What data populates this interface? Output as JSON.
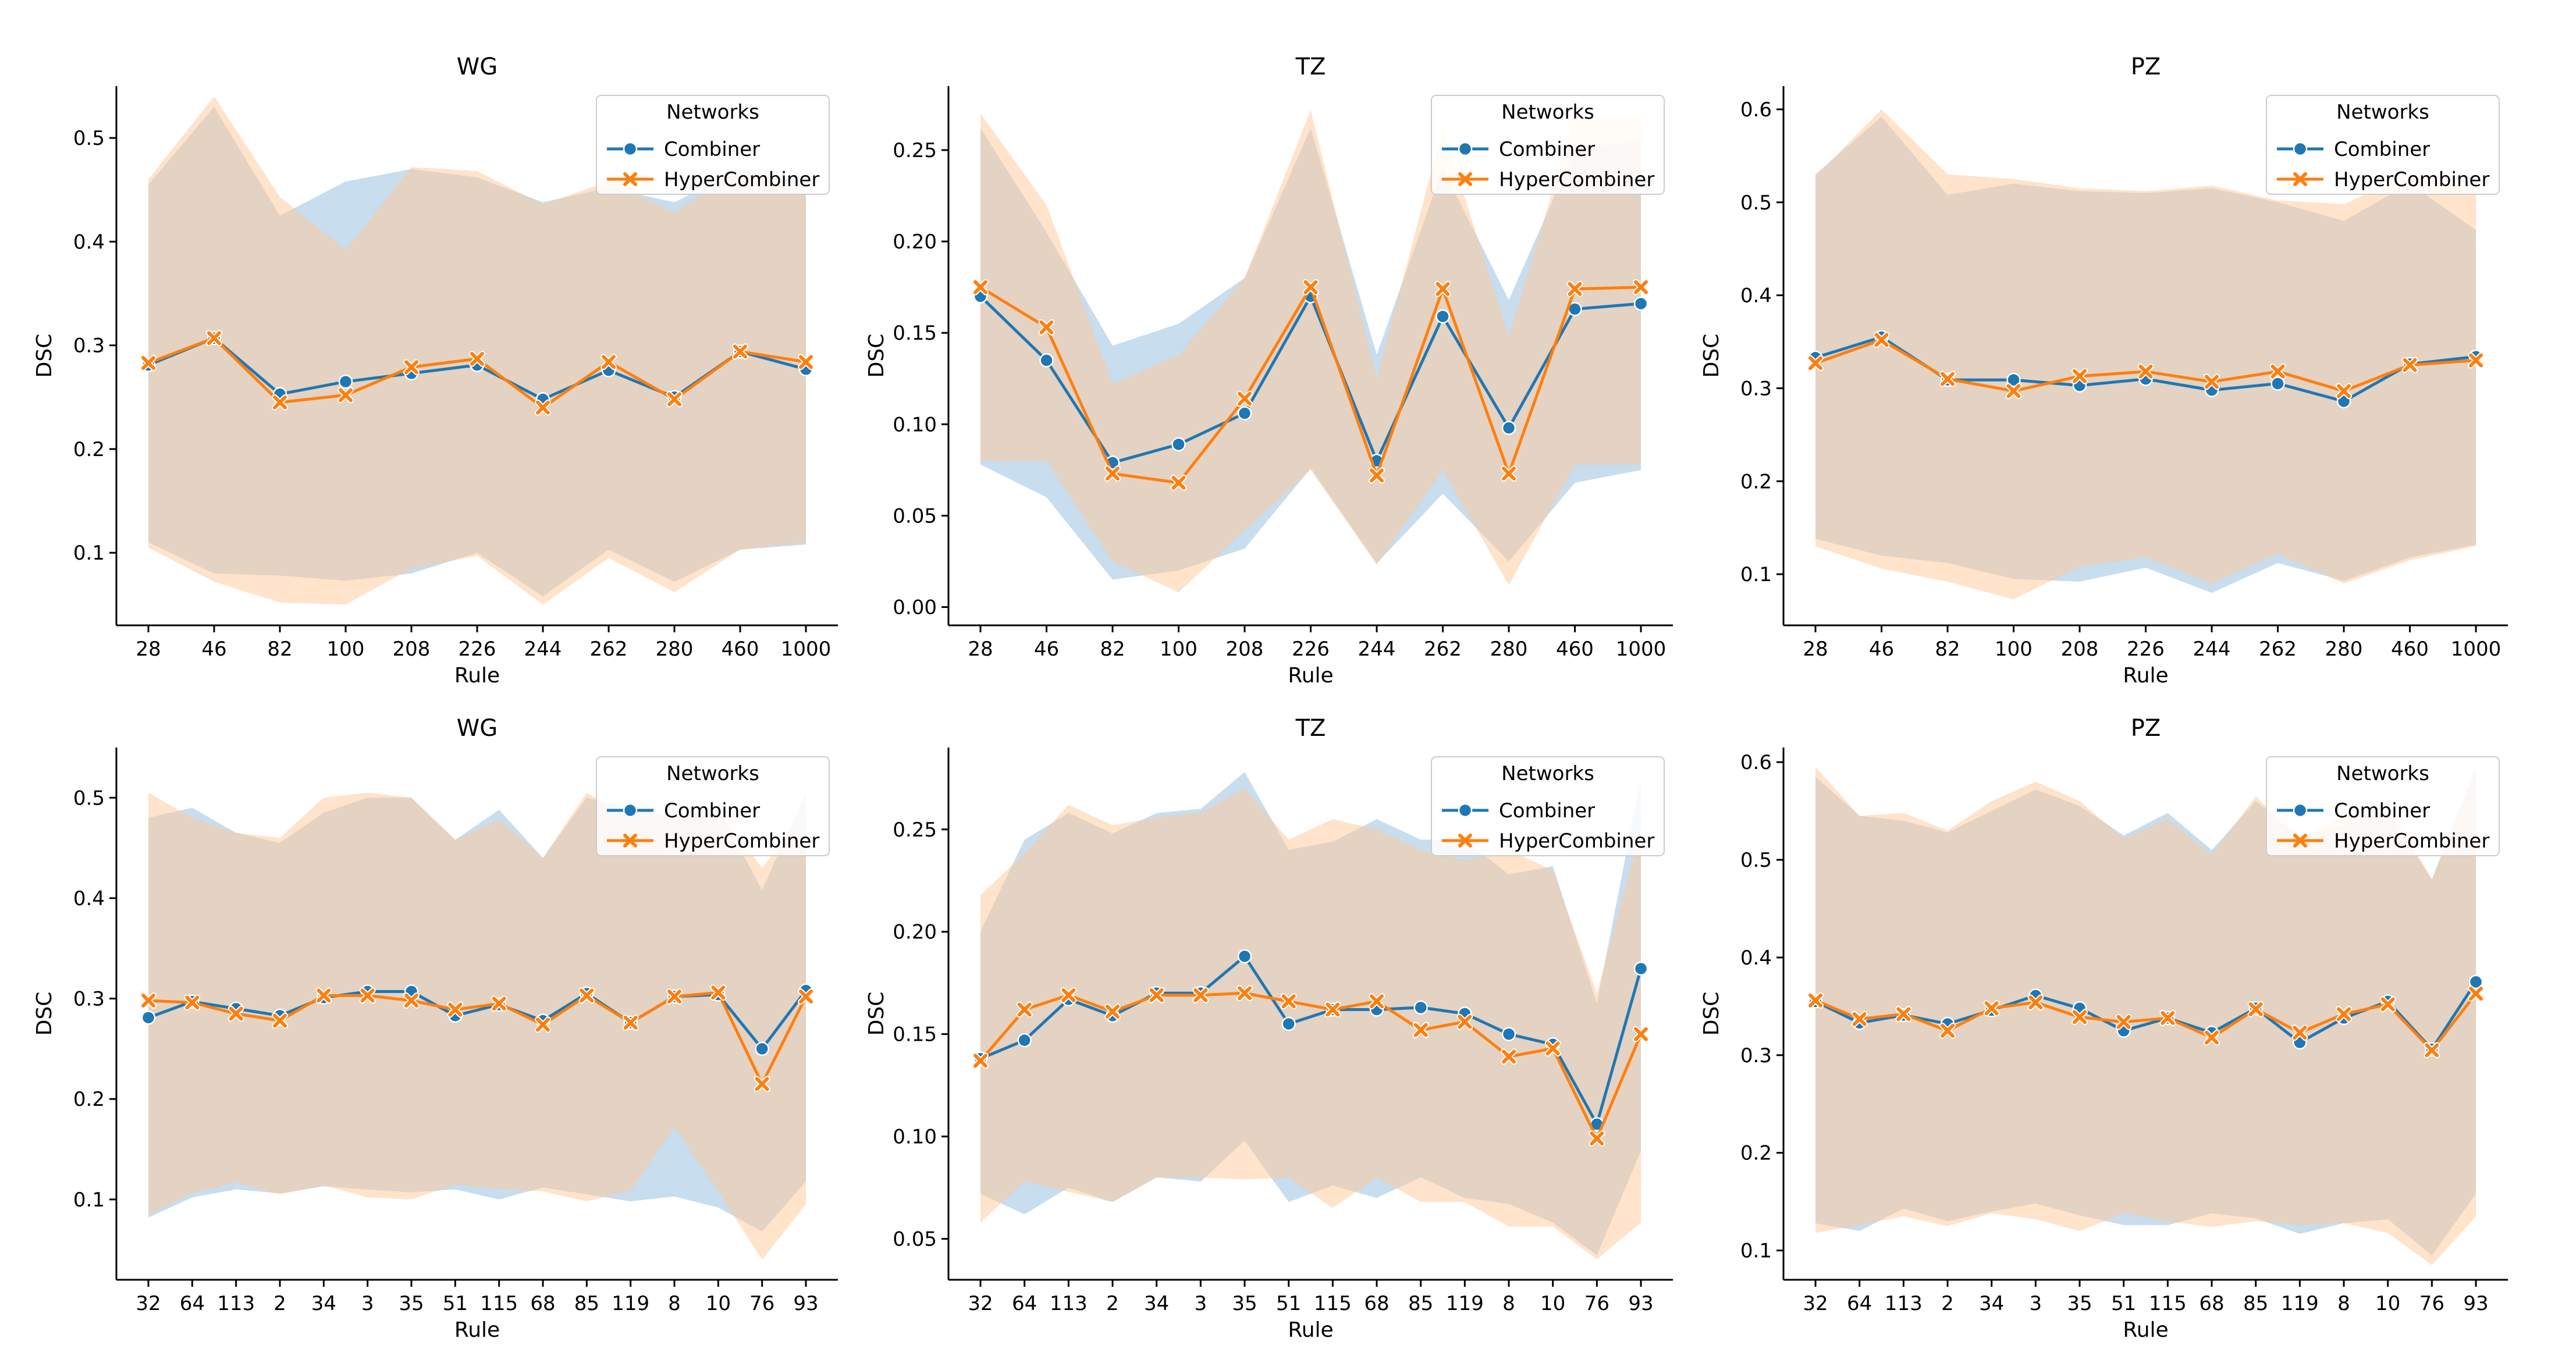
{
  "figure": {
    "legend_title": "Networks"
  },
  "colors": {
    "combiner": "#1f77b4",
    "hyper": "#ff7f0e",
    "combiner_band": "#a6c8e4",
    "hyper_band": "#ffc896",
    "axis": "#000000"
  },
  "chart_data": [
    {
      "type": "line",
      "title": "WG",
      "xlabel": "Rule",
      "ylabel": "DSC",
      "categories": [
        "28",
        "46",
        "82",
        "100",
        "208",
        "226",
        "244",
        "262",
        "280",
        "460",
        "1000"
      ],
      "ylim": [
        0.03,
        0.55
      ],
      "yticks": [
        0.1,
        0.2,
        0.3,
        0.4,
        0.5
      ],
      "ytick_labels": [
        "0.1",
        "0.2",
        "0.3",
        "0.4",
        "0.5"
      ],
      "legend": "top-right",
      "series": [
        {
          "name": "Combiner",
          "marker": "circle",
          "values": [
            0.281,
            0.307,
            0.253,
            0.265,
            0.273,
            0.281,
            0.248,
            0.276,
            0.25,
            0.294,
            0.277
          ],
          "upper": [
            0.455,
            0.53,
            0.425,
            0.458,
            0.47,
            0.462,
            0.438,
            0.452,
            0.438,
            0.47,
            0.458
          ],
          "lower": [
            0.11,
            0.08,
            0.078,
            0.073,
            0.08,
            0.1,
            0.058,
            0.103,
            0.072,
            0.103,
            0.108
          ]
        },
        {
          "name": "HyperCombiner",
          "marker": "x",
          "values": [
            0.283,
            0.307,
            0.245,
            0.252,
            0.279,
            0.287,
            0.24,
            0.284,
            0.248,
            0.294,
            0.284
          ],
          "upper": [
            0.46,
            0.54,
            0.443,
            0.392,
            0.472,
            0.468,
            0.436,
            0.458,
            0.428,
            0.47,
            0.45
          ],
          "lower": [
            0.105,
            0.072,
            0.052,
            0.05,
            0.085,
            0.097,
            0.05,
            0.095,
            0.062,
            0.103,
            0.11
          ]
        }
      ]
    },
    {
      "type": "line",
      "title": "TZ",
      "xlabel": "Rule",
      "ylabel": "DSC",
      "categories": [
        "28",
        "46",
        "82",
        "100",
        "208",
        "226",
        "244",
        "262",
        "280",
        "460",
        "1000"
      ],
      "ylim": [
        -0.01,
        0.285
      ],
      "yticks": [
        0.0,
        0.05,
        0.1,
        0.15,
        0.2,
        0.25
      ],
      "ytick_labels": [
        "0.00",
        "0.05",
        "0.10",
        "0.15",
        "0.20",
        "0.25"
      ],
      "legend": "top-right",
      "series": [
        {
          "name": "Combiner",
          "marker": "circle",
          "values": [
            0.17,
            0.135,
            0.079,
            0.089,
            0.106,
            0.17,
            0.08,
            0.159,
            0.098,
            0.163,
            0.166
          ],
          "upper": [
            0.262,
            0.205,
            0.143,
            0.155,
            0.18,
            0.262,
            0.138,
            0.24,
            0.168,
            0.25,
            0.255
          ],
          "lower": [
            0.078,
            0.06,
            0.015,
            0.02,
            0.032,
            0.076,
            0.024,
            0.062,
            0.025,
            0.068,
            0.075
          ]
        },
        {
          "name": "HyperCombiner",
          "marker": "x",
          "values": [
            0.175,
            0.153,
            0.073,
            0.068,
            0.114,
            0.175,
            0.072,
            0.174,
            0.073,
            0.174,
            0.175
          ],
          "upper": [
            0.27,
            0.22,
            0.122,
            0.138,
            0.18,
            0.272,
            0.125,
            0.262,
            0.148,
            0.268,
            0.268
          ],
          "lower": [
            0.08,
            0.08,
            0.025,
            0.008,
            0.042,
            0.075,
            0.023,
            0.075,
            0.012,
            0.078,
            0.078
          ]
        }
      ]
    },
    {
      "type": "line",
      "title": "PZ",
      "xlabel": "Rule",
      "ylabel": "DSC",
      "categories": [
        "28",
        "46",
        "82",
        "100",
        "208",
        "226",
        "244",
        "262",
        "280",
        "460",
        "1000"
      ],
      "ylim": [
        0.045,
        0.625
      ],
      "yticks": [
        0.1,
        0.2,
        0.3,
        0.4,
        0.5,
        0.6
      ],
      "ytick_labels": [
        "0.1",
        "0.2",
        "0.3",
        "0.4",
        "0.5",
        "0.6"
      ],
      "legend": "top-right",
      "series": [
        {
          "name": "Combiner",
          "marker": "circle",
          "values": [
            0.333,
            0.355,
            0.309,
            0.309,
            0.303,
            0.31,
            0.298,
            0.305,
            0.286,
            0.326,
            0.334
          ],
          "upper": [
            0.53,
            0.592,
            0.508,
            0.52,
            0.512,
            0.51,
            0.515,
            0.5,
            0.48,
            0.52,
            0.47
          ],
          "lower": [
            0.138,
            0.12,
            0.112,
            0.095,
            0.092,
            0.107,
            0.08,
            0.112,
            0.093,
            0.118,
            0.132
          ]
        },
        {
          "name": "HyperCombiner",
          "marker": "x",
          "values": [
            0.327,
            0.352,
            0.31,
            0.297,
            0.313,
            0.318,
            0.307,
            0.318,
            0.297,
            0.325,
            0.33
          ],
          "upper": [
            0.528,
            0.6,
            0.53,
            0.525,
            0.515,
            0.512,
            0.518,
            0.502,
            0.498,
            0.53,
            0.515
          ],
          "lower": [
            0.13,
            0.106,
            0.092,
            0.073,
            0.108,
            0.118,
            0.09,
            0.122,
            0.09,
            0.115,
            0.13
          ]
        }
      ]
    },
    {
      "type": "line",
      "title": "WG",
      "xlabel": "Rule",
      "ylabel": "DSC",
      "categories": [
        "32",
        "64",
        "113",
        "2",
        "34",
        "3",
        "35",
        "51",
        "115",
        "68",
        "85",
        "119",
        "8",
        "10",
        "76",
        "93"
      ],
      "ylim": [
        0.02,
        0.55
      ],
      "yticks": [
        0.1,
        0.2,
        0.3,
        0.4,
        0.5
      ],
      "ytick_labels": [
        "0.1",
        "0.2",
        "0.3",
        "0.4",
        "0.5"
      ],
      "legend": "top-right",
      "series": [
        {
          "name": "Combiner",
          "marker": "circle",
          "values": [
            0.281,
            0.297,
            0.29,
            0.283,
            0.301,
            0.307,
            0.307,
            0.283,
            0.294,
            0.278,
            0.305,
            0.276,
            0.302,
            0.304,
            0.25,
            0.308
          ],
          "upper": [
            0.48,
            0.49,
            0.465,
            0.455,
            0.485,
            0.5,
            0.5,
            0.458,
            0.488,
            0.44,
            0.5,
            0.49,
            0.48,
            0.49,
            0.408,
            0.505
          ],
          "lower": [
            0.082,
            0.102,
            0.11,
            0.106,
            0.113,
            0.11,
            0.107,
            0.11,
            0.1,
            0.112,
            0.105,
            0.098,
            0.103,
            0.092,
            0.068,
            0.118
          ]
        },
        {
          "name": "HyperCombiner",
          "marker": "x",
          "values": [
            0.298,
            0.296,
            0.285,
            0.278,
            0.303,
            0.303,
            0.298,
            0.289,
            0.295,
            0.274,
            0.303,
            0.276,
            0.302,
            0.306,
            0.215,
            0.302
          ],
          "upper": [
            0.505,
            0.48,
            0.465,
            0.46,
            0.5,
            0.505,
            0.5,
            0.458,
            0.478,
            0.44,
            0.505,
            0.48,
            0.48,
            0.488,
            0.43,
            0.485
          ],
          "lower": [
            0.085,
            0.106,
            0.117,
            0.105,
            0.114,
            0.102,
            0.1,
            0.115,
            0.11,
            0.108,
            0.098,
            0.109,
            0.172,
            0.108,
            0.04,
            0.095
          ]
        }
      ]
    },
    {
      "type": "line",
      "title": "TZ",
      "xlabel": "Rule",
      "ylabel": "DSC",
      "categories": [
        "32",
        "64",
        "113",
        "2",
        "34",
        "3",
        "35",
        "51",
        "115",
        "68",
        "85",
        "119",
        "8",
        "10",
        "76",
        "93"
      ],
      "ylim": [
        0.03,
        0.29
      ],
      "yticks": [
        0.05,
        0.1,
        0.15,
        0.2,
        0.25
      ],
      "ytick_labels": [
        "0.05",
        "0.10",
        "0.15",
        "0.20",
        "0.25"
      ],
      "legend": "top-right",
      "series": [
        {
          "name": "Combiner",
          "marker": "circle",
          "values": [
            0.138,
            0.147,
            0.167,
            0.159,
            0.17,
            0.17,
            0.188,
            0.155,
            0.162,
            0.162,
            0.163,
            0.16,
            0.15,
            0.145,
            0.106,
            0.182
          ],
          "upper": [
            0.2,
            0.245,
            0.258,
            0.248,
            0.258,
            0.26,
            0.278,
            0.24,
            0.244,
            0.255,
            0.245,
            0.245,
            0.228,
            0.232,
            0.165,
            0.275
          ],
          "lower": [
            0.072,
            0.062,
            0.075,
            0.068,
            0.08,
            0.078,
            0.098,
            0.068,
            0.076,
            0.07,
            0.08,
            0.07,
            0.067,
            0.058,
            0.042,
            0.093
          ]
        },
        {
          "name": "HyperCombiner",
          "marker": "x",
          "values": [
            0.137,
            0.162,
            0.169,
            0.161,
            0.169,
            0.169,
            0.17,
            0.166,
            0.162,
            0.166,
            0.152,
            0.156,
            0.139,
            0.143,
            0.099,
            0.15
          ],
          "upper": [
            0.218,
            0.238,
            0.262,
            0.252,
            0.256,
            0.258,
            0.27,
            0.245,
            0.255,
            0.25,
            0.24,
            0.235,
            0.24,
            0.23,
            0.17,
            0.25
          ],
          "lower": [
            0.058,
            0.078,
            0.073,
            0.068,
            0.08,
            0.08,
            0.079,
            0.08,
            0.065,
            0.08,
            0.068,
            0.068,
            0.056,
            0.056,
            0.04,
            0.058
          ]
        }
      ]
    },
    {
      "type": "line",
      "title": "PZ",
      "xlabel": "Rule",
      "ylabel": "DSC",
      "categories": [
        "32",
        "64",
        "113",
        "2",
        "34",
        "3",
        "35",
        "51",
        "115",
        "68",
        "85",
        "119",
        "8",
        "10",
        "76",
        "93"
      ],
      "ylim": [
        0.07,
        0.615
      ],
      "yticks": [
        0.1,
        0.2,
        0.3,
        0.4,
        0.5,
        0.6
      ],
      "ytick_labels": [
        "0.1",
        "0.2",
        "0.3",
        "0.4",
        "0.5",
        "0.6"
      ],
      "legend": "top-right",
      "series": [
        {
          "name": "Combiner",
          "marker": "circle",
          "values": [
            0.355,
            0.333,
            0.341,
            0.332,
            0.346,
            0.361,
            0.348,
            0.325,
            0.338,
            0.323,
            0.348,
            0.313,
            0.338,
            0.355,
            0.306,
            0.375
          ],
          "upper": [
            0.585,
            0.545,
            0.54,
            0.528,
            0.55,
            0.572,
            0.555,
            0.525,
            0.548,
            0.51,
            0.56,
            0.525,
            0.535,
            0.55,
            0.48,
            0.595
          ],
          "lower": [
            0.128,
            0.12,
            0.143,
            0.13,
            0.14,
            0.148,
            0.136,
            0.126,
            0.126,
            0.138,
            0.133,
            0.117,
            0.128,
            0.132,
            0.095,
            0.158
          ]
        },
        {
          "name": "HyperCombiner",
          "marker": "x",
          "values": [
            0.356,
            0.337,
            0.342,
            0.325,
            0.348,
            0.354,
            0.339,
            0.334,
            0.338,
            0.318,
            0.347,
            0.323,
            0.342,
            0.352,
            0.305,
            0.363
          ],
          "upper": [
            0.595,
            0.545,
            0.548,
            0.53,
            0.56,
            0.58,
            0.56,
            0.522,
            0.542,
            0.505,
            0.565,
            0.52,
            0.548,
            0.558,
            0.48,
            0.59
          ],
          "lower": [
            0.118,
            0.126,
            0.135,
            0.125,
            0.138,
            0.132,
            0.12,
            0.138,
            0.13,
            0.124,
            0.13,
            0.126,
            0.128,
            0.118,
            0.085,
            0.135
          ]
        }
      ]
    }
  ]
}
